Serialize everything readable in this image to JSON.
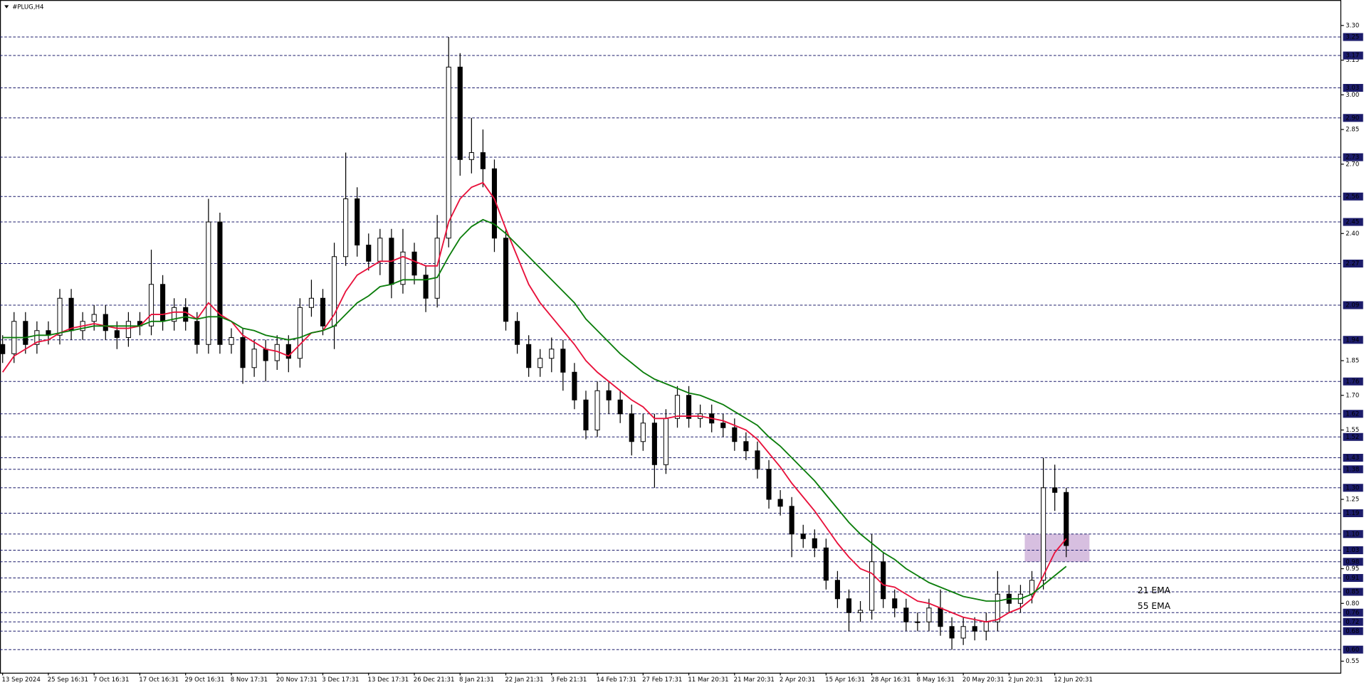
{
  "chart_data": {
    "type": "candlestick",
    "title": "#PLUG,H4",
    "categories": [
      "13 Sep 2024",
      null,
      null,
      null,
      "25 Sep 16:31",
      null,
      null,
      null,
      "7 Oct 16:31",
      null,
      null,
      null,
      "17 Oct 16:31",
      null,
      null,
      null,
      "29 Oct 16:31",
      null,
      null,
      null,
      "8 Nov 17:31",
      null,
      null,
      null,
      "20 Nov 17:31",
      null,
      null,
      null,
      "3 Dec 17:31",
      null,
      null,
      null,
      "13 Dec 17:31",
      null,
      null,
      null,
      "26 Dec 21:31",
      null,
      null,
      null,
      "8 Jan 21:31",
      null,
      null,
      null,
      "22 Jan 21:31",
      null,
      null,
      null,
      "3 Feb 21:31",
      null,
      null,
      null,
      "14 Feb 17:31",
      null,
      null,
      null,
      "27 Feb 17:31",
      null,
      null,
      null,
      "11 Mar 20:31",
      null,
      null,
      null,
      "21 Mar 20:31",
      null,
      null,
      null,
      "2 Apr 20:31",
      null,
      null,
      null,
      "15 Apr 16:31",
      null,
      null,
      null,
      "28 Apr 16:31",
      null,
      null,
      null,
      "8 May 16:31",
      null,
      null,
      null,
      "20 May 20:31",
      null,
      null,
      null,
      "2 Jun 20:31",
      null,
      null,
      null,
      "12 Jun 20:31",
      null
    ],
    "open": [
      1.92,
      1.88,
      2.02,
      1.92,
      1.98,
      1.96,
      2.12,
      1.98,
      2.02,
      2.05,
      1.98,
      1.95,
      2.02,
      2.0,
      2.18,
      2.02,
      2.08,
      2.02,
      1.92,
      2.45,
      1.92,
      1.95,
      1.82,
      1.9,
      1.85,
      1.92,
      1.86,
      2.08,
      2.12,
      2.0,
      2.3,
      2.55,
      2.35,
      2.28,
      2.38,
      2.18,
      2.32,
      2.22,
      2.12,
      2.38,
      3.12,
      2.72,
      2.75,
      2.68,
      2.38,
      2.02,
      1.92,
      1.82,
      1.86,
      1.9,
      1.8,
      1.68,
      1.55,
      1.72,
      1.68,
      1.62,
      1.5,
      1.58,
      1.4,
      1.6,
      1.7,
      1.6,
      1.62,
      1.58,
      1.56,
      1.5,
      1.46,
      1.38,
      1.25,
      1.22,
      1.1,
      1.08,
      1.04,
      0.9,
      0.82,
      0.76,
      0.77,
      0.98,
      0.82,
      0.78,
      0.72,
      0.72,
      0.78,
      0.7,
      0.65,
      0.7,
      0.68,
      0.72,
      0.84,
      0.8,
      0.84,
      0.9,
      1.3,
      1.28
    ],
    "high": [
      1.96,
      2.06,
      2.06,
      2.02,
      2.02,
      2.16,
      2.16,
      2.06,
      2.09,
      2.09,
      2.02,
      2.06,
      2.06,
      2.33,
      2.22,
      2.12,
      2.12,
      2.06,
      2.55,
      2.49,
      1.99,
      1.99,
      1.94,
      1.94,
      1.96,
      1.96,
      2.12,
      2.2,
      2.16,
      2.36,
      2.75,
      2.6,
      2.4,
      2.42,
      2.42,
      2.42,
      2.36,
      2.26,
      2.48,
      3.25,
      3.18,
      2.9,
      2.85,
      2.72,
      2.42,
      2.06,
      1.96,
      1.9,
      1.95,
      1.94,
      1.84,
      1.72,
      1.76,
      1.76,
      1.72,
      1.66,
      1.62,
      1.62,
      1.64,
      1.74,
      1.74,
      1.66,
      1.66,
      1.62,
      1.6,
      1.54,
      1.5,
      1.42,
      1.29,
      1.26,
      1.14,
      1.12,
      1.08,
      0.94,
      0.86,
      0.81,
      1.1,
      1.02,
      0.86,
      0.82,
      0.76,
      0.82,
      0.86,
      0.74,
      0.74,
      0.74,
      0.76,
      0.94,
      0.88,
      0.88,
      0.94,
      1.43,
      1.4,
      1.3
    ],
    "low": [
      1.84,
      1.84,
      1.88,
      1.88,
      1.92,
      1.92,
      1.94,
      1.94,
      1.98,
      1.94,
      1.9,
      1.91,
      1.96,
      1.96,
      1.98,
      1.98,
      1.98,
      1.88,
      1.88,
      1.88,
      1.88,
      1.75,
      1.78,
      1.76,
      1.81,
      1.8,
      1.82,
      2.04,
      1.96,
      1.9,
      2.26,
      2.3,
      2.24,
      2.22,
      2.12,
      2.14,
      2.18,
      2.06,
      2.08,
      2.34,
      2.65,
      2.66,
      2.6,
      2.32,
      1.98,
      1.88,
      1.78,
      1.78,
      1.8,
      1.72,
      1.64,
      1.51,
      1.52,
      1.62,
      1.58,
      1.44,
      1.46,
      1.3,
      1.36,
      1.56,
      1.56,
      1.56,
      1.54,
      1.52,
      1.46,
      1.42,
      1.34,
      1.21,
      1.18,
      1.0,
      1.04,
      1.0,
      0.86,
      0.78,
      0.68,
      0.72,
      0.73,
      0.78,
      0.74,
      0.68,
      0.68,
      0.68,
      0.66,
      0.6,
      0.62,
      0.64,
      0.64,
      0.68,
      0.76,
      0.76,
      0.8,
      0.86,
      1.2,
      1.0
    ],
    "close": [
      1.88,
      2.02,
      1.92,
      1.98,
      1.96,
      2.12,
      1.98,
      2.02,
      2.05,
      1.98,
      1.95,
      2.02,
      2.0,
      2.18,
      2.02,
      2.08,
      2.02,
      1.92,
      2.45,
      1.92,
      1.95,
      1.82,
      1.9,
      1.85,
      1.92,
      1.86,
      2.08,
      2.12,
      2.0,
      2.3,
      2.55,
      2.35,
      2.28,
      2.38,
      2.18,
      2.32,
      2.22,
      2.12,
      2.38,
      3.12,
      2.72,
      2.75,
      2.68,
      2.38,
      2.02,
      1.92,
      1.82,
      1.86,
      1.9,
      1.8,
      1.68,
      1.55,
      1.72,
      1.68,
      1.62,
      1.5,
      1.58,
      1.4,
      1.6,
      1.7,
      1.6,
      1.62,
      1.58,
      1.56,
      1.5,
      1.46,
      1.38,
      1.25,
      1.22,
      1.1,
      1.08,
      1.04,
      0.9,
      0.82,
      0.76,
      0.77,
      0.98,
      0.82,
      0.78,
      0.72,
      0.72,
      0.78,
      0.7,
      0.65,
      0.7,
      0.68,
      0.72,
      0.84,
      0.8,
      0.84,
      0.9,
      1.3,
      1.28,
      1.05
    ],
    "series": [
      {
        "name": "21 EMA",
        "color": "#e8103a",
        "values": [
          1.8,
          1.87,
          1.9,
          1.93,
          1.94,
          1.97,
          1.99,
          2.0,
          2.01,
          2.0,
          1.99,
          1.99,
          2.0,
          2.05,
          2.05,
          2.06,
          2.06,
          2.03,
          2.1,
          2.05,
          2.02,
          1.96,
          1.93,
          1.9,
          1.89,
          1.87,
          1.92,
          1.97,
          1.98,
          2.05,
          2.15,
          2.22,
          2.25,
          2.28,
          2.28,
          2.3,
          2.28,
          2.26,
          2.26,
          2.45,
          2.55,
          2.6,
          2.62,
          2.55,
          2.42,
          2.3,
          2.18,
          2.1,
          2.04,
          1.98,
          1.92,
          1.85,
          1.8,
          1.76,
          1.72,
          1.68,
          1.65,
          1.6,
          1.6,
          1.61,
          1.61,
          1.61,
          1.6,
          1.59,
          1.57,
          1.55,
          1.51,
          1.45,
          1.39,
          1.32,
          1.26,
          1.2,
          1.13,
          1.06,
          1.0,
          0.95,
          0.93,
          0.88,
          0.87,
          0.84,
          0.81,
          0.8,
          0.78,
          0.76,
          0.74,
          0.73,
          0.72,
          0.73,
          0.76,
          0.78,
          0.82,
          0.92,
          1.02,
          1.08
        ]
      },
      {
        "name": "55 EMA",
        "color": "#0b7d0b",
        "values": [
          1.95,
          1.95,
          1.95,
          1.96,
          1.96,
          1.97,
          1.98,
          1.99,
          2.0,
          2.0,
          2.0,
          2.0,
          2.0,
          2.02,
          2.02,
          2.03,
          2.04,
          2.03,
          2.04,
          2.04,
          2.02,
          1.99,
          1.98,
          1.96,
          1.95,
          1.94,
          1.95,
          1.97,
          1.98,
          2.0,
          2.05,
          2.1,
          2.13,
          2.17,
          2.18,
          2.2,
          2.2,
          2.2,
          2.21,
          2.3,
          2.38,
          2.43,
          2.46,
          2.44,
          2.4,
          2.35,
          2.3,
          2.25,
          2.2,
          2.15,
          2.1,
          2.03,
          1.98,
          1.93,
          1.88,
          1.84,
          1.8,
          1.77,
          1.75,
          1.73,
          1.71,
          1.7,
          1.68,
          1.66,
          1.63,
          1.6,
          1.57,
          1.52,
          1.48,
          1.43,
          1.38,
          1.33,
          1.27,
          1.21,
          1.15,
          1.1,
          1.06,
          1.02,
          0.99,
          0.95,
          0.92,
          0.89,
          0.87,
          0.85,
          0.83,
          0.82,
          0.81,
          0.81,
          0.82,
          0.82,
          0.84,
          0.88,
          0.92,
          0.96
        ]
      }
    ],
    "ylim": [
      0.5,
      3.41
    ],
    "yticks": [
      {
        "value": 3.3,
        "label": "3.30"
      },
      {
        "value": 3.15,
        "label": "3.15"
      },
      {
        "value": 3.0,
        "label": "3.00"
      },
      {
        "value": 2.85,
        "label": "2.85"
      },
      {
        "value": 2.7,
        "label": "2.70"
      },
      {
        "value": 2.4,
        "label": "2.40"
      },
      {
        "value": 1.85,
        "label": "1.85"
      },
      {
        "value": 1.7,
        "label": "1.70"
      },
      {
        "value": 1.55,
        "label": "1.55"
      },
      {
        "value": 1.25,
        "label": "1.25"
      },
      {
        "value": 0.95,
        "label": "0.95"
      },
      {
        "value": 0.8,
        "label": "0.80"
      },
      {
        "value": 0.55,
        "label": "0.55"
      }
    ],
    "levels": [
      {
        "value": 3.25,
        "label": "3.25"
      },
      {
        "value": 3.17,
        "label": "3.17"
      },
      {
        "value": 3.03,
        "label": "3.03"
      },
      {
        "value": 2.9,
        "label": "2.90"
      },
      {
        "value": 2.73,
        "label": "2.73"
      },
      {
        "value": 2.56,
        "label": "2.56"
      },
      {
        "value": 2.45,
        "label": "2.45"
      },
      {
        "value": 2.27,
        "label": "2.27"
      },
      {
        "value": 2.09,
        "label": "2.09"
      },
      {
        "value": 1.94,
        "label": "1.94"
      },
      {
        "value": 1.76,
        "label": "1.76"
      },
      {
        "value": 1.62,
        "label": "1.62"
      },
      {
        "value": 1.52,
        "label": "1.52"
      },
      {
        "value": 1.43,
        "label": "1.43"
      },
      {
        "value": 1.38,
        "label": "1.38"
      },
      {
        "value": 1.3,
        "label": "1.30"
      },
      {
        "value": 1.19,
        "label": "1.19"
      },
      {
        "value": 1.1,
        "label": "1.10"
      },
      {
        "value": 1.03,
        "label": "1.03"
      },
      {
        "value": 0.98,
        "label": "0.98"
      },
      {
        "value": 0.91,
        "label": "0.91"
      },
      {
        "value": 0.85,
        "label": "0.85"
      },
      {
        "value": 0.76,
        "label": "0.76"
      },
      {
        "value": 0.72,
        "label": "0.72"
      },
      {
        "value": 0.68,
        "label": "0.68"
      },
      {
        "value": 0.6,
        "label": "0.60"
      }
    ],
    "level_color": "#1c1c6b",
    "zone": [
      0.98,
      1.1
    ],
    "zone_color": "#c9a9d6"
  }
}
